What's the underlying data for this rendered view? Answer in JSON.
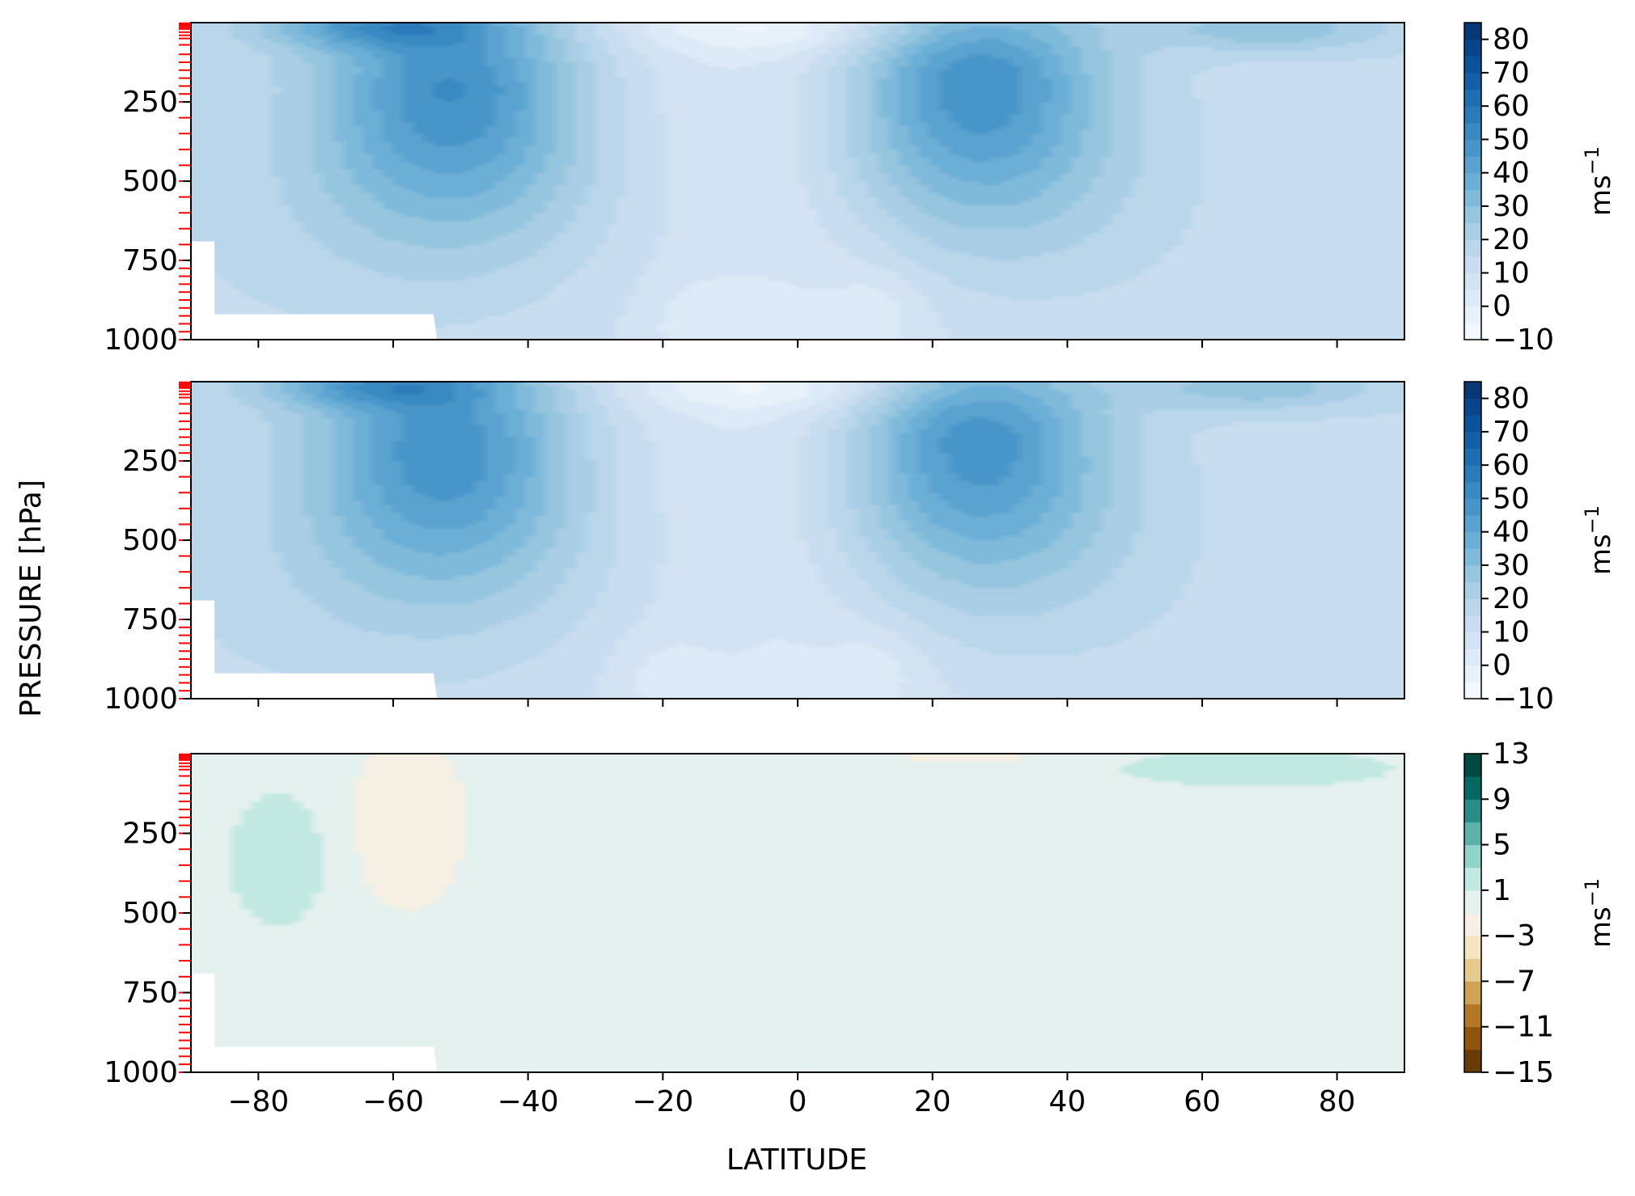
{
  "chart_data": {
    "type": "contour",
    "shared": {
      "xlabel": "LATITUDE",
      "ylabel": "PRESSURE [hPa]",
      "xlim": [
        -90,
        90
      ],
      "ylim": [
        0,
        1000
      ],
      "y_inverted": true,
      "xticks": [
        -80,
        -60,
        -40,
        -20,
        0,
        20,
        40,
        60,
        80
      ],
      "xtick_labels": [
        "−80",
        "−60",
        "−40",
        "−20",
        "0",
        "20",
        "40",
        "60",
        "80"
      ],
      "yticks": [
        250,
        500,
        750,
        1000
      ],
      "ytick_labels": [
        "250",
        "500",
        "750",
        "1000"
      ],
      "model_levels_marked": [
        2,
        5,
        10,
        15,
        20,
        30,
        40,
        50,
        70,
        100,
        125,
        150,
        175,
        200,
        225,
        250,
        300,
        350,
        400,
        450,
        500,
        550,
        600,
        650,
        700,
        750,
        775,
        800,
        825,
        850,
        875,
        900,
        925,
        950,
        975,
        1000
      ],
      "level_marker_color": "#ff0000",
      "grid": false
    },
    "panels": [
      {
        "name": "zonal-wind-a",
        "colormap": "Blues",
        "colorbar": {
          "ticks": [
            -10,
            0,
            10,
            20,
            30,
            40,
            50,
            60,
            70,
            80
          ],
          "tick_labels": [
            "−10",
            "0",
            "10",
            "20",
            "30",
            "40",
            "50",
            "60",
            "70",
            "80"
          ],
          "range": [
            -10,
            85
          ],
          "levels": 19,
          "unit": "ms",
          "unit_exp": "−1"
        },
        "features": [
          {
            "kind": "jet",
            "lat": -51,
            "p": 220,
            "peak": 42
          },
          {
            "kind": "jet",
            "lat": 26,
            "p": 200,
            "peak": 45
          },
          {
            "kind": "upper",
            "lat": -62,
            "p": 10,
            "peak": 35
          },
          {
            "kind": "upper",
            "lat": 70,
            "p": 20,
            "peak": 28
          },
          {
            "kind": "easterly",
            "lat": -5,
            "p": 20,
            "peak": -8
          },
          {
            "kind": "surface-min",
            "lat": -15,
            "p": 950,
            "peak": -2
          },
          {
            "kind": "surface-min",
            "lat": 12,
            "p": 900,
            "peak": -2
          }
        ]
      },
      {
        "name": "zonal-wind-b",
        "colormap": "Blues",
        "colorbar": {
          "ticks": [
            -10,
            0,
            10,
            20,
            30,
            40,
            50,
            60,
            70,
            80
          ],
          "tick_labels": [
            "−10",
            "0",
            "10",
            "20",
            "30",
            "40",
            "50",
            "60",
            "70",
            "80"
          ],
          "range": [
            -10,
            85
          ],
          "levels": 19,
          "unit": "ms",
          "unit_exp": "−1"
        },
        "features": [
          {
            "kind": "jet",
            "lat": -52,
            "p": 220,
            "peak": 41
          },
          {
            "kind": "jet",
            "lat": 26,
            "p": 200,
            "peak": 44
          },
          {
            "kind": "upper",
            "lat": -62,
            "p": 10,
            "peak": 34
          },
          {
            "kind": "upper",
            "lat": 68,
            "p": 20,
            "peak": 27
          },
          {
            "kind": "easterly",
            "lat": -5,
            "p": 20,
            "peak": -8
          },
          {
            "kind": "surface-min",
            "lat": -20,
            "p": 930,
            "peak": -2
          },
          {
            "kind": "surface-min",
            "lat": 12,
            "p": 900,
            "peak": -2
          }
        ]
      },
      {
        "name": "difference",
        "colormap": "BrBG",
        "colorbar": {
          "ticks": [
            -15,
            -11,
            -7,
            -3,
            1,
            5,
            9,
            13
          ],
          "tick_labels": [
            "−15",
            "−11",
            "−7",
            "−3",
            "1",
            "5",
            "9",
            "13"
          ],
          "range": [
            -15,
            13
          ],
          "levels": 14,
          "unit": "ms",
          "unit_exp": "−1"
        },
        "features": [
          {
            "kind": "positive",
            "lat": -77,
            "lat_width": 5,
            "p_top": 170,
            "p_bottom": 490,
            "value": 2
          },
          {
            "kind": "negative",
            "lat": -58,
            "lat_width": 6,
            "p_top": 0,
            "p_bottom": 430,
            "value": -2
          },
          {
            "kind": "positive",
            "lat": 68,
            "lat_width": 14,
            "p_top": 0,
            "p_bottom": 90,
            "value": 2
          },
          {
            "kind": "negative",
            "lat": 25,
            "lat_width": 12,
            "p_top": 0,
            "p_bottom": 25,
            "value": -1
          }
        ]
      }
    ]
  }
}
